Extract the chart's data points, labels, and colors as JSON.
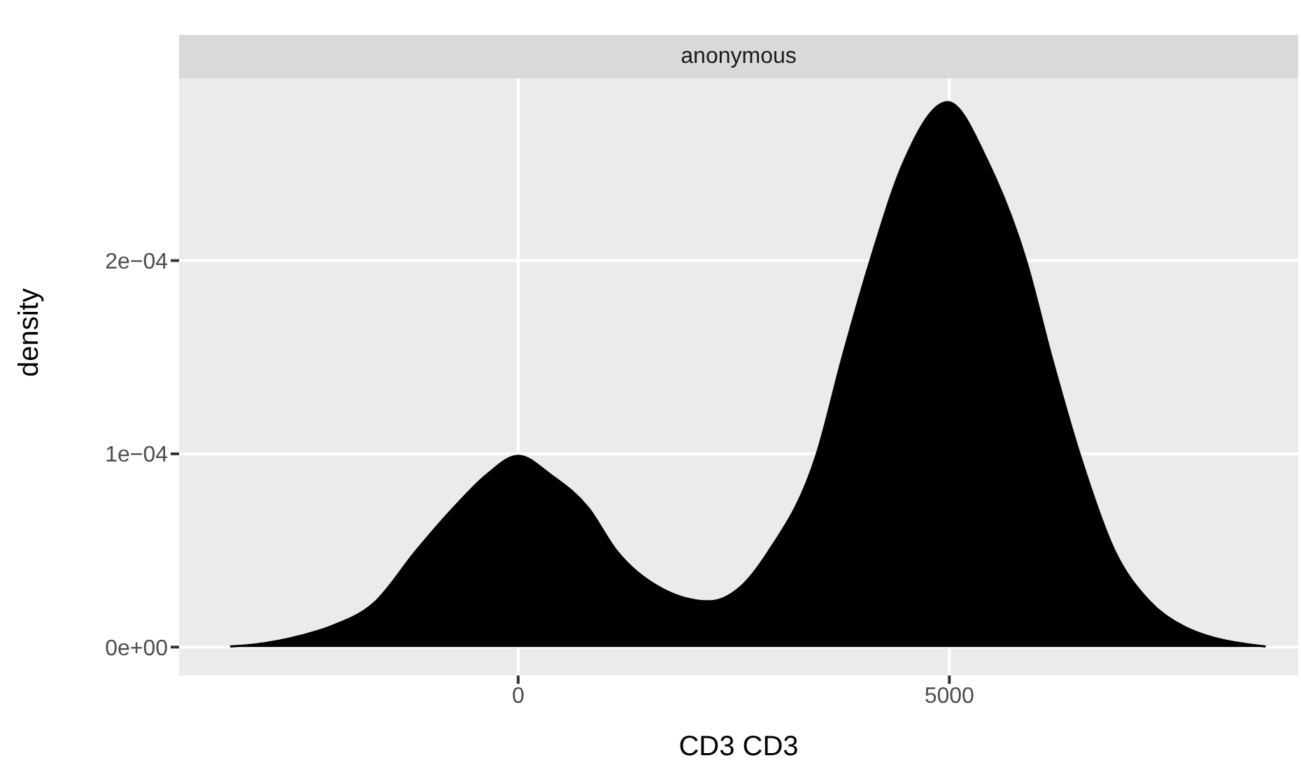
{
  "chart_data": {
    "type": "area",
    "title": "anonymous",
    "xlabel": "CD3 CD3",
    "ylabel": "density",
    "x": [
      -3340,
      -3074,
      -2508,
      -2152,
      -1667,
      -1181,
      -750,
      -370,
      0,
      383,
      814,
      1138,
      1678,
      2217,
      2573,
      2896,
      3463,
      3760,
      4083,
      4461,
      4980,
      5458,
      5890,
      6186,
      6510,
      6914,
      7314,
      7750,
      8668
    ],
    "series": [
      {
        "color": "#000000",
        "values": [
          3e-07,
          1.2e-06,
          6e-06,
          1.1e-05,
          2.3e-05,
          5e-05,
          7.2e-05,
          8.9e-05,
          9.9e-05,
          8.9e-05,
          7.2e-05,
          5e-05,
          3e-05,
          2.37e-05,
          3.09e-05,
          4.9e-05,
          0.0001,
          0.00015,
          0.0002,
          0.00025,
          0.000282,
          0.00025,
          0.0002,
          0.00015,
          0.0001,
          5e-05,
          2.4e-05,
          1e-05,
          3e-07
        ]
      }
    ],
    "xlim": [
      -3932,
      9045
    ],
    "ylim": [
      -1.47e-05,
      0.0002943
    ],
    "xticks": [
      0,
      5000
    ],
    "yticks": [
      {
        "value": 0,
        "label": "0e+00"
      },
      {
        "value": 0.0001,
        "label": "1e−04"
      },
      {
        "value": 0.0002,
        "label": "2e−04"
      }
    ],
    "grid": true
  }
}
